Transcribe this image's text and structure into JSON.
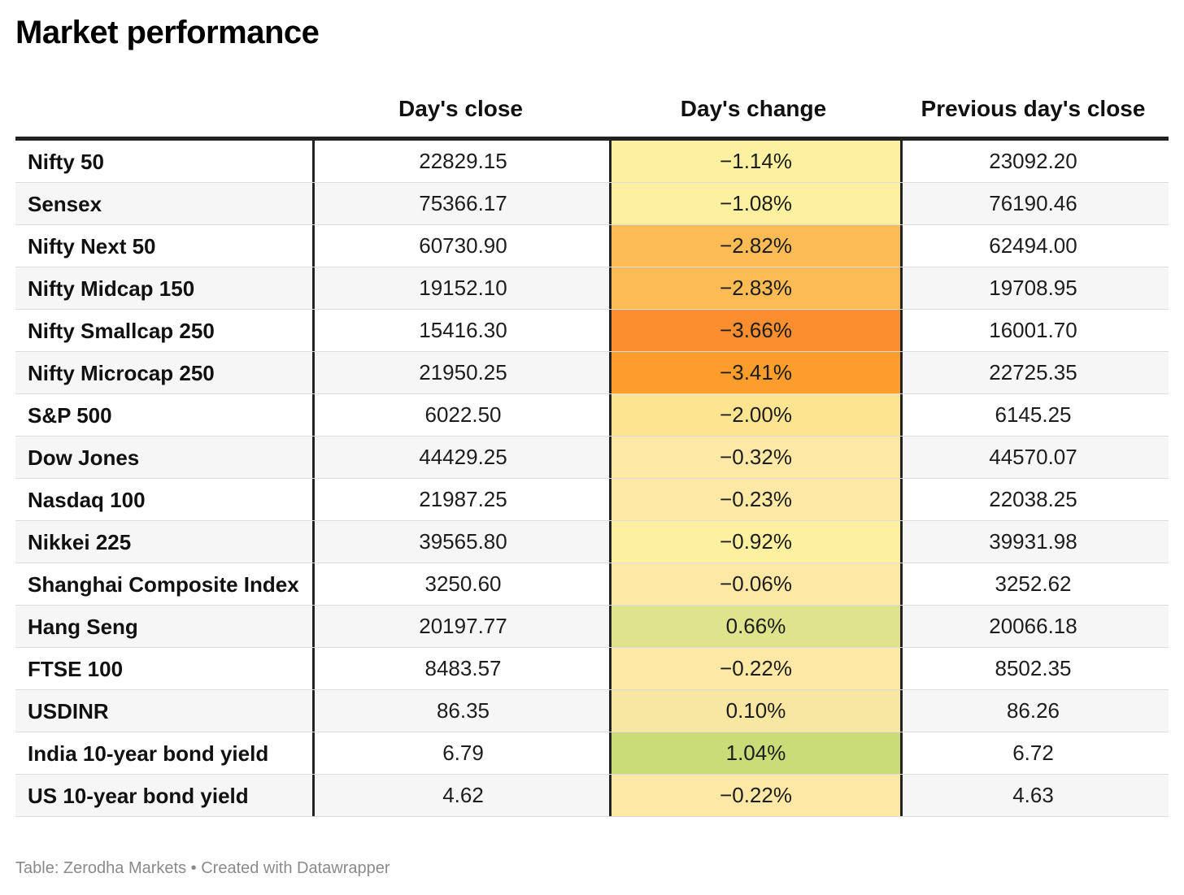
{
  "title": "Market performance",
  "footer": "Table: Zerodha Markets • Created with Datawrapper",
  "chart_data": {
    "type": "table",
    "columns": [
      "",
      "Day's close",
      "Day's change",
      "Previous day's close"
    ],
    "rows": [
      {
        "name": "Nifty 50",
        "close": "22829.15",
        "change": "−1.14%",
        "prev": "23092.20",
        "color": "#fdf0a0"
      },
      {
        "name": "Sensex",
        "close": "75366.17",
        "change": "−1.08%",
        "prev": "76190.46",
        "color": "#fdf0a0"
      },
      {
        "name": "Nifty Next 50",
        "close": "60730.90",
        "change": "−2.82%",
        "prev": "62494.00",
        "color": "#fdbb55"
      },
      {
        "name": "Nifty Midcap 150",
        "close": "19152.10",
        "change": "−2.83%",
        "prev": "19708.95",
        "color": "#fdbb55"
      },
      {
        "name": "Nifty Smallcap 250",
        "close": "15416.30",
        "change": "−3.66%",
        "prev": "16001.70",
        "color": "#fb8e2e"
      },
      {
        "name": "Nifty Microcap 250",
        "close": "21950.25",
        "change": "−3.41%",
        "prev": "22725.35",
        "color": "#fd9d2b"
      },
      {
        "name": "S&P 500",
        "close": "6022.50",
        "change": "−2.00%",
        "prev": "6145.25",
        "color": "#fde490"
      },
      {
        "name": "Dow Jones",
        "close": "44429.25",
        "change": "−0.32%",
        "prev": "44570.07",
        "color": "#fde8a5"
      },
      {
        "name": "Nasdaq 100",
        "close": "21987.25",
        "change": "−0.23%",
        "prev": "22038.25",
        "color": "#fde8a5"
      },
      {
        "name": "Nikkei 225",
        "close": "39565.80",
        "change": "−0.92%",
        "prev": "39931.98",
        "color": "#fdf0a0"
      },
      {
        "name": "Shanghai Composite Index",
        "close": "3250.60",
        "change": "−0.06%",
        "prev": "3252.62",
        "color": "#fde8a5"
      },
      {
        "name": "Hang Seng",
        "close": "20197.77",
        "change": "0.66%",
        "prev": "20066.18",
        "color": "#dfe38c"
      },
      {
        "name": "FTSE 100",
        "close": "8483.57",
        "change": "−0.22%",
        "prev": "8502.35",
        "color": "#fde8a5"
      },
      {
        "name": "USDINR",
        "close": "86.35",
        "change": "0.10%",
        "prev": "86.26",
        "color": "#f8e7a2"
      },
      {
        "name": "India 10-year bond yield",
        "close": "6.79",
        "change": "1.04%",
        "prev": "6.72",
        "color": "#c9dc78"
      },
      {
        "name": "US 10-year bond yield",
        "close": "4.62",
        "change": "−0.22%",
        "prev": "4.63",
        "color": "#fde8a5"
      }
    ]
  }
}
